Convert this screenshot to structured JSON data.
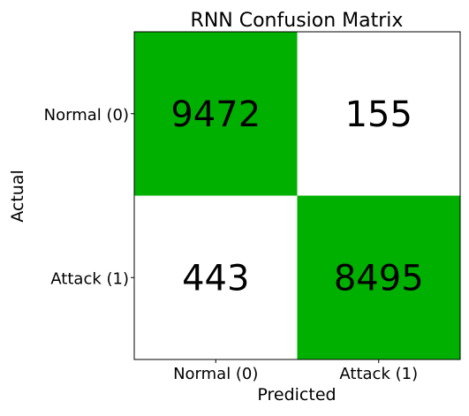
{
  "chart_data": {
    "type": "heatmap",
    "title": "RNN Confusion Matrix",
    "xlabel": "Predicted",
    "ylabel": "Actual",
    "x_categories": [
      "Normal (0)",
      "Attack (1)"
    ],
    "y_categories": [
      "Normal (0)",
      "Attack (1)"
    ],
    "values": [
      [
        9472,
        155
      ],
      [
        443,
        8495
      ]
    ],
    "diagonal_color": "#00b000",
    "off_diagonal_color": "#ffffff",
    "grid": false
  }
}
